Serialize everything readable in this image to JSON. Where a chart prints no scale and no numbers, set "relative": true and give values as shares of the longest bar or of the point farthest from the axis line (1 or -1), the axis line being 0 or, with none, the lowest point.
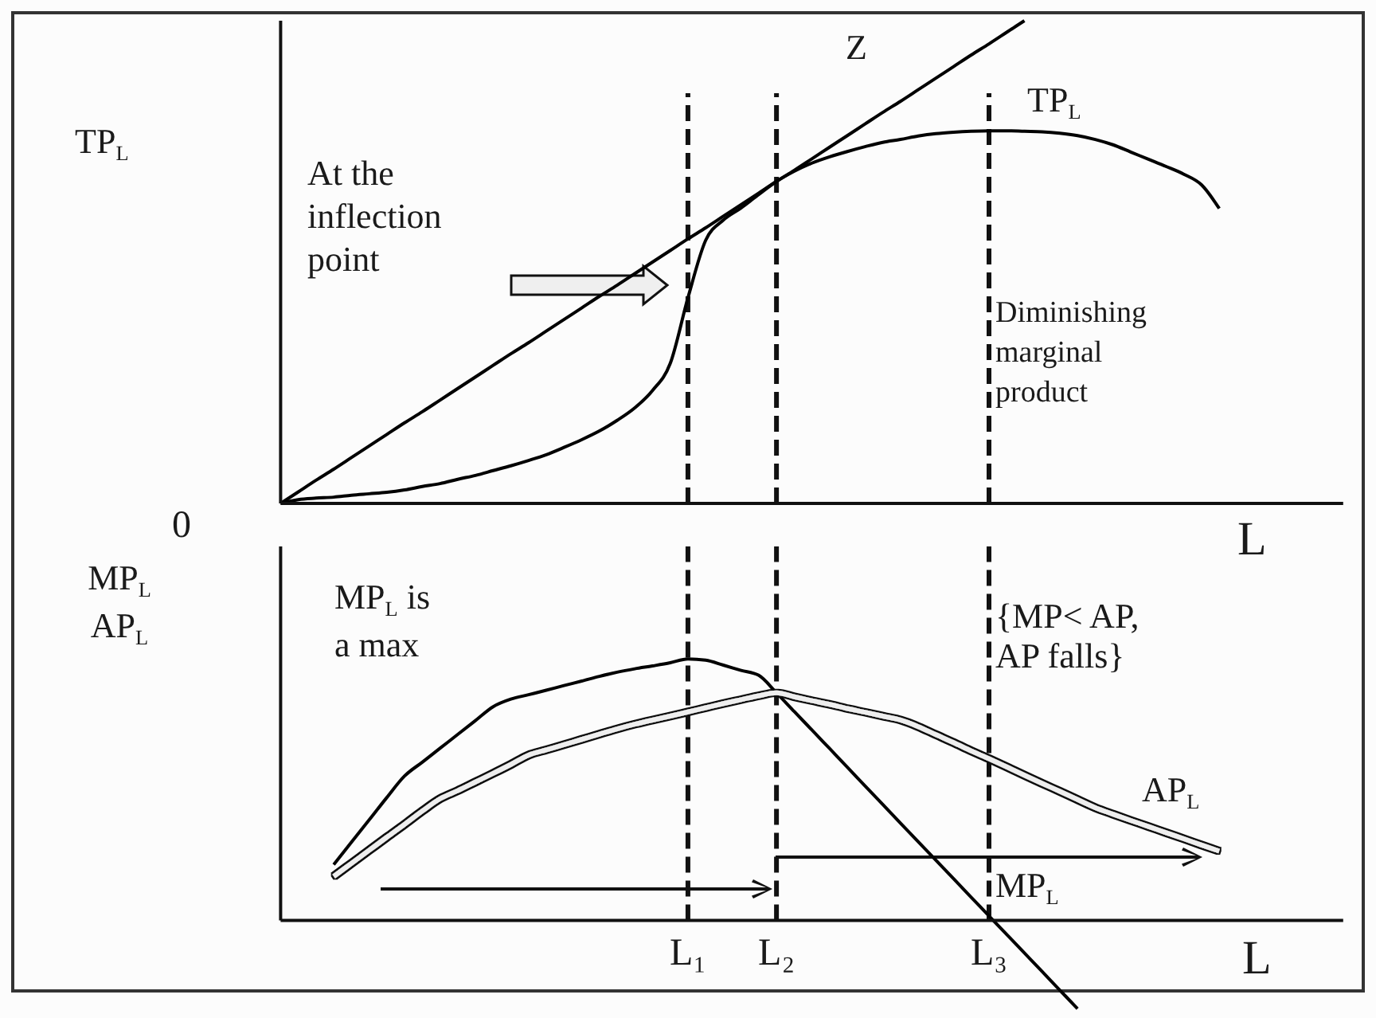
{
  "chart_data": [
    {
      "type": "line",
      "relative": true,
      "ylabel": "TP$_{L}$",
      "xlabel": "L",
      "tick_labels": false,
      "categories": [
        null,
        null,
        null,
        null,
        null,
        null,
        null,
        null,
        null,
        null,
        null,
        null,
        null,
        null,
        null,
        null,
        null,
        null,
        null,
        null,
        null,
        null,
        null,
        "L₁",
        null,
        null,
        null,
        null,
        "L₂",
        null,
        null,
        null,
        null,
        null,
        null,
        null,
        null,
        null,
        null,
        null,
        "L₃",
        null,
        null,
        null,
        null,
        null,
        null,
        null,
        null,
        null,
        null,
        null,
        null,
        null,
        null,
        null,
        null,
        null,
        null,
        null,
        null
      ],
      "series": [
        {
          "name": "TP$_{L}$",
          "color": "#000000",
          "values": [
            0,
            0.008,
            0.011,
            0.013,
            0.017,
            0.02,
            0.023,
            0.028,
            0.035,
            0.041,
            0.05,
            0.058,
            0.068,
            0.078,
            0.089,
            0.101,
            0.116,
            0.132,
            0.15,
            0.172,
            0.198,
            0.234,
            0.29,
            0.426,
            0.545,
            0.587,
            0.612,
            0.64,
            0.667,
            0.688,
            0.705,
            0.718,
            0.729,
            0.739,
            0.748,
            0.754,
            0.761,
            0.766,
            0.769,
            0.771,
            0.772,
            0.772,
            0.771,
            0.77,
            0.767,
            0.762,
            0.754,
            0.743,
            0.728,
            0.713,
            0.698,
            0.682,
            0.66,
            0.611,
            null,
            null,
            null,
            null,
            null,
            null,
            null
          ]
        },
        {
          "name": "Z",
          "color": "#000000",
          "values": [
            0,
            0.024,
            0.048,
            0.071,
            0.095,
            0.119,
            0.143,
            0.167,
            0.19,
            0.214,
            0.238,
            0.262,
            0.286,
            0.31,
            0.333,
            0.357,
            0.381,
            0.405,
            0.429,
            0.452,
            0.476,
            0.5,
            0.524,
            0.548,
            0.571,
            0.595,
            0.619,
            0.643,
            0.667,
            0.69,
            0.714,
            0.738,
            0.762,
            0.786,
            0.81,
            0.833,
            0.857,
            0.881,
            0.905,
            0.929,
            0.952,
            0.976,
            1,
            null,
            null,
            null,
            null,
            null,
            null,
            null,
            null,
            null,
            null,
            null,
            null,
            null,
            null,
            null,
            null,
            null,
            null
          ]
        }
      ],
      "ref_lines": [
        {
          "axis": "x",
          "value": "L₁",
          "line_style": "dashed",
          "color": "#111111"
        },
        {
          "axis": "x",
          "value": "L₂",
          "line_style": "dashed",
          "color": "#111111"
        },
        {
          "axis": "x",
          "value": "L₃",
          "line_style": "dashed",
          "color": "#111111"
        }
      ],
      "annotations": [
        "0",
        "At the inflection point",
        "Diminishing marginal product"
      ]
    },
    {
      "type": "line",
      "relative": true,
      "ylabel": "MP$_{L}$ AP$_{L}$",
      "xlabel": "L",
      "tick_labels": "x",
      "categories": [
        null,
        null,
        null,
        null,
        null,
        null,
        null,
        null,
        null,
        null,
        null,
        null,
        null,
        null,
        null,
        null,
        null,
        null,
        null,
        null,
        null,
        null,
        null,
        "L₁",
        null,
        null,
        null,
        null,
        "L₂",
        null,
        null,
        null,
        null,
        null,
        null,
        null,
        null,
        null,
        null,
        null,
        "L₃",
        null,
        null,
        null,
        null,
        null,
        null,
        null,
        null,
        null,
        null,
        null,
        null,
        null,
        null,
        null,
        null,
        null,
        null,
        null,
        null
      ],
      "series": [
        {
          "name": "MP$_{L}$",
          "color": "#000000",
          "values": [
            null,
            null,
            null,
            0.213,
            0.299,
            0.384,
            0.47,
            0.552,
            0.605,
            0.658,
            0.711,
            0.764,
            0.817,
            0.846,
            0.863,
            0.88,
            0.898,
            0.915,
            0.933,
            0.949,
            0.962,
            0.973,
            0.985,
            1,
            0.995,
            0.976,
            0.956,
            0.937,
            0.87,
            0.799,
            0.728,
            0.657,
            0.586,
            0.514,
            0.443,
            0.372,
            0.301,
            0.23,
            0.159,
            0.088,
            0.017,
            -0.054,
            -0.125,
            -0.196,
            -0.267,
            -0.338,
            null,
            null,
            null,
            null,
            null,
            null,
            null,
            null,
            null,
            null,
            null,
            null,
            null,
            null,
            null
          ]
        },
        {
          "name": "AP$_{L}$",
          "color": "#eeeeee",
          "values": [
            null,
            null,
            null,
            0.168,
            0.218,
            0.268,
            0.318,
            0.367,
            0.418,
            0.465,
            0.496,
            0.529,
            0.562,
            0.596,
            0.632,
            0.652,
            0.672,
            0.692,
            0.712,
            0.732,
            0.75,
            0.766,
            0.781,
            0.797,
            0.813,
            0.829,
            0.844,
            0.859,
            0.87,
            0.855,
            0.84,
            0.826,
            0.81,
            0.796,
            0.781,
            0.766,
            0.741,
            0.71,
            0.68,
            0.648,
            0.618,
            0.587,
            0.555,
            0.524,
            0.493,
            0.462,
            0.431,
            0.406,
            0.382,
            0.359,
            0.335,
            0.312,
            0.288,
            0.265,
            null,
            null,
            null,
            null,
            null,
            null,
            null
          ]
        }
      ],
      "ref_lines": [
        {
          "axis": "x",
          "value": "L₁",
          "line_style": "dashed",
          "color": "#111111"
        },
        {
          "axis": "x",
          "value": "L₂",
          "line_style": "dashed",
          "color": "#111111"
        },
        {
          "axis": "x",
          "value": "L₃",
          "line_style": "dashed",
          "color": "#111111"
        }
      ],
      "annotations": [
        "MP$_{L}$ is a max",
        "{MP< AP, AP falls}"
      ]
    }
  ]
}
